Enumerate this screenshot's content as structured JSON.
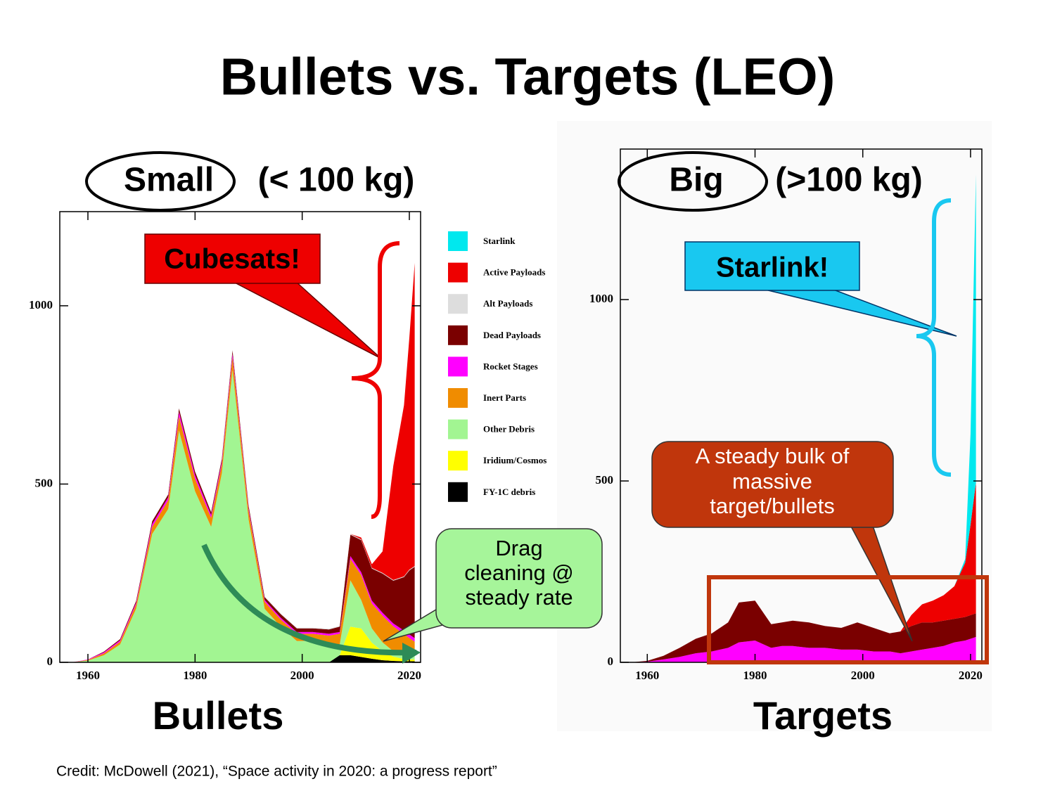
{
  "title": "Bullets vs. Targets (LEO)",
  "credit": "Credit: McDowell (2021), “Space activity in 2020: a progress report”",
  "chart_data": [
    {
      "type": "stacked-area",
      "label": "Small",
      "label_note": "(< 100 kg)",
      "xlabel": "Bullets",
      "callouts": [
        [
          "Cubesats!"
        ],
        [
          "Drag",
          "cleaning @",
          "steady rate"
        ]
      ],
      "x": [
        1957,
        1960,
        1963,
        1966,
        1969,
        1972,
        1975,
        1977,
        1980,
        1983,
        1985,
        1987,
        1990,
        1993,
        1996,
        1999,
        2002,
        2005,
        2007,
        2009,
        2011,
        2013,
        2015,
        2017,
        2019,
        2020,
        2021
      ],
      "xlim": [
        1954.75,
        2022.1
      ],
      "xticks": [
        1960,
        1980,
        2000,
        2020
      ],
      "ylim": [
        0,
        1264
      ],
      "yticks": [
        0,
        500,
        1000
      ],
      "series": [
        {
          "name": "Starlink",
          "color": "#00e8ee",
          "values": [
            0,
            0,
            0,
            0,
            0,
            0,
            0,
            0,
            0,
            0,
            0,
            0,
            0,
            0,
            0,
            0,
            0,
            0,
            0,
            0,
            0,
            0,
            0,
            0,
            0,
            0,
            0
          ]
        },
        {
          "name": "Active Payloads",
          "color": "#ee0000",
          "values": [
            0,
            0,
            0,
            0,
            0,
            0,
            0,
            0,
            0,
            0,
            0,
            0,
            0,
            0,
            0,
            0,
            0,
            0,
            0,
            0,
            5,
            10,
            60,
            320,
            480,
            650,
            850
          ]
        },
        {
          "name": "Alt Payloads",
          "color": "#dddddd",
          "values": [
            0,
            0,
            0,
            0,
            0,
            0,
            2,
            2,
            2,
            2,
            2,
            2,
            2,
            2,
            2,
            2,
            2,
            2,
            2,
            2,
            2,
            2,
            2,
            2,
            2,
            2,
            2
          ]
        },
        {
          "name": "Dead Payloads",
          "color": "#7a0000",
          "values": [
            0,
            0,
            2,
            3,
            5,
            8,
            8,
            10,
            10,
            8,
            8,
            10,
            8,
            8,
            10,
            10,
            10,
            12,
            15,
            60,
            90,
            90,
            110,
            120,
            150,
            180,
            200
          ]
        },
        {
          "name": "Rocket Stages",
          "color": "#ff00ff",
          "values": [
            0,
            1,
            3,
            4,
            5,
            8,
            8,
            12,
            10,
            8,
            8,
            10,
            6,
            5,
            5,
            5,
            5,
            5,
            5,
            8,
            8,
            8,
            8,
            8,
            10,
            10,
            10
          ]
        },
        {
          "name": "Inert Parts",
          "color": "#f08c00",
          "values": [
            0,
            2,
            5,
            8,
            12,
            20,
            25,
            40,
            35,
            25,
            25,
            35,
            25,
            20,
            20,
            20,
            20,
            25,
            30,
            60,
            70,
            70,
            75,
            70,
            60,
            50,
            40
          ]
        },
        {
          "name": "Other Debris",
          "color": "#a2f592",
          "values": [
            0,
            5,
            20,
            50,
            150,
            360,
            430,
            650,
            480,
            380,
            530,
            820,
            400,
            150,
            100,
            60,
            60,
            50,
            30,
            130,
            80,
            40,
            25,
            15,
            10,
            10,
            10
          ]
        },
        {
          "name": "Iridium/Cosmos",
          "color": "#ffff00",
          "values": [
            0,
            0,
            0,
            0,
            0,
            0,
            0,
            0,
            0,
            0,
            0,
            0,
            0,
            0,
            0,
            0,
            0,
            0,
            0,
            80,
            80,
            45,
            25,
            12,
            6,
            5,
            5
          ]
        },
        {
          "name": "FY-1C debris",
          "color": "#000000",
          "values": [
            0,
            0,
            0,
            0,
            0,
            0,
            0,
            0,
            0,
            0,
            0,
            0,
            0,
            0,
            0,
            0,
            0,
            0,
            20,
            20,
            15,
            10,
            6,
            4,
            3,
            3,
            3
          ]
        }
      ]
    },
    {
      "type": "stacked-area",
      "label": "Big",
      "label_note": "(>100 kg)",
      "xlabel": "Targets",
      "callouts": [
        [
          "Starlink!"
        ],
        [
          "A steady bulk of",
          "massive",
          "target/bullets"
        ]
      ],
      "x": [
        1957,
        1960,
        1963,
        1966,
        1969,
        1972,
        1975,
        1977,
        1980,
        1983,
        1985,
        1987,
        1990,
        1993,
        1996,
        1999,
        2002,
        2005,
        2007,
        2009,
        2011,
        2013,
        2015,
        2017,
        2019,
        2020,
        2021
      ],
      "xlim": [
        1955.0,
        2022.1
      ],
      "xticks": [
        1960,
        1980,
        2000,
        2020
      ],
      "ylim": [
        0,
        1415
      ],
      "yticks": [
        0,
        500,
        1000
      ],
      "series": [
        {
          "color": "#00e8ee",
          "values": [
            0,
            0,
            0,
            0,
            0,
            0,
            0,
            0,
            0,
            0,
            0,
            0,
            0,
            0,
            0,
            0,
            0,
            0,
            0,
            0,
            0,
            0,
            0,
            0,
            10,
            250,
            850
          ]
        },
        {
          "color": "#ee0000",
          "values": [
            0,
            0,
            0,
            0,
            0,
            0,
            0,
            0,
            0,
            0,
            0,
            0,
            0,
            0,
            0,
            0,
            0,
            0,
            0,
            30,
            50,
            60,
            70,
            90,
            150,
            250,
            360
          ]
        },
        {
          "color": "#7a0000",
          "values": [
            0,
            2,
            10,
            25,
            40,
            50,
            70,
            110,
            110,
            65,
            65,
            70,
            70,
            60,
            60,
            75,
            65,
            50,
            60,
            70,
            75,
            70,
            70,
            65,
            65,
            65,
            65
          ]
        },
        {
          "color": "#ff00ff",
          "values": [
            0,
            2,
            8,
            15,
            25,
            30,
            40,
            55,
            60,
            40,
            45,
            45,
            40,
            40,
            35,
            35,
            30,
            30,
            25,
            30,
            35,
            40,
            45,
            55,
            60,
            65,
            70
          ]
        }
      ]
    }
  ]
}
